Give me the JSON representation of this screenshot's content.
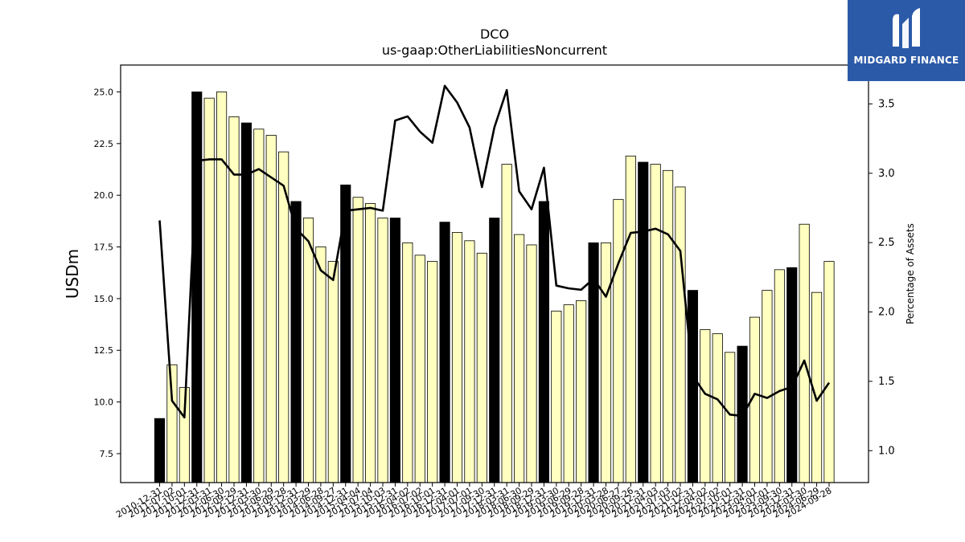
{
  "chart_data": {
    "type": "bar",
    "title": "DCO",
    "subtitle": "us-gaap:OtherLiabilitiesNoncurrent",
    "ylabel": "USDm",
    "y2label": "Percentage of Assets",
    "ylim": [
      6.1,
      26.3
    ],
    "y2lim": [
      0.77,
      3.78
    ],
    "yticks": [
      "7.5",
      "10.0",
      "12.5",
      "15.0",
      "17.5",
      "20.0",
      "22.5",
      "25.0"
    ],
    "y2ticks": [
      "1.0",
      "1.5",
      "2.0",
      "2.5",
      "3.0",
      "3.5"
    ],
    "categories": [
      "2010-12-31",
      "2011-07-02",
      "2011-10-01",
      "2011-12-31",
      "2012-03-31",
      "2012-06-30",
      "2012-09-29",
      "2012-12-31",
      "2013-03-30",
      "2013-06-29",
      "2013-09-28",
      "2013-12-31",
      "2014-03-29",
      "2014-06-28",
      "2014-09-27",
      "2014-12-31",
      "2015-04-04",
      "2015-07-04",
      "2015-10-03",
      "2015-12-31",
      "2016-04-02",
      "2016-07-02",
      "2016-10-01",
      "2016-12-31",
      "2017-04-01",
      "2017-07-01",
      "2017-09-30",
      "2017-12-31",
      "2018-03-31",
      "2018-06-30",
      "2018-09-29",
      "2018-12-31",
      "2019-03-30",
      "2019-06-29",
      "2019-09-28",
      "2019-12-31",
      "2020-03-28",
      "2020-06-27",
      "2020-09-26",
      "2020-12-31",
      "2021-04-03",
      "2021-07-03",
      "2021-10-02",
      "2021-12-31",
      "2022-04-02",
      "2022-07-02",
      "2022-10-01",
      "2022-12-31",
      "2023-04-01",
      "2023-07-01",
      "2023-09-30",
      "2023-12-31",
      "2024-03-30",
      "2024-06-29",
      "2024-09-28"
    ],
    "series": [
      {
        "type": "bar",
        "values": [
          9.2,
          11.8,
          10.7,
          25.0,
          24.7,
          25.0,
          23.8,
          23.5,
          23.2,
          22.9,
          22.1,
          19.7,
          18.9,
          17.5,
          16.8,
          20.5,
          19.9,
          19.6,
          18.9,
          18.9,
          17.7,
          17.1,
          16.8,
          18.7,
          18.2,
          17.8,
          17.2,
          18.9,
          21.5,
          18.1,
          17.6,
          19.7,
          14.4,
          14.7,
          14.9,
          17.7,
          17.7,
          19.8,
          21.9,
          21.6,
          21.5,
          21.2,
          20.4,
          15.4,
          13.5,
          13.3,
          12.4,
          12.7,
          14.1,
          15.4,
          16.4,
          16.5,
          18.6,
          15.3,
          16.8
        ],
        "highlight": [
          true,
          false,
          false,
          true,
          false,
          false,
          false,
          true,
          false,
          false,
          false,
          true,
          false,
          false,
          false,
          true,
          false,
          false,
          false,
          true,
          false,
          false,
          false,
          true,
          false,
          false,
          false,
          true,
          false,
          false,
          false,
          true,
          false,
          false,
          false,
          true,
          false,
          false,
          false,
          true,
          false,
          false,
          false,
          true,
          false,
          false,
          false,
          true,
          false,
          false,
          false,
          true,
          false,
          false,
          false
        ],
        "color_highlight": "#000000",
        "color_normal": "#ffffc0"
      },
      {
        "type": "line",
        "axis": "right",
        "values": [
          2.66,
          1.36,
          1.24,
          3.09,
          3.1,
          3.1,
          2.99,
          2.99,
          3.03,
          2.97,
          2.91,
          2.6,
          2.51,
          2.3,
          2.23,
          2.73,
          2.74,
          2.75,
          2.73,
          3.38,
          3.41,
          3.3,
          3.22,
          3.63,
          3.51,
          3.33,
          2.9,
          3.33,
          3.6,
          2.87,
          2.74,
          3.04,
          2.19,
          2.17,
          2.16,
          2.24,
          2.11,
          2.35,
          2.57,
          2.58,
          2.6,
          2.56,
          2.44,
          1.54,
          1.41,
          1.37,
          1.26,
          1.25,
          1.41,
          1.38,
          1.43,
          1.46,
          1.65,
          1.36,
          1.49
        ],
        "color": "#000000"
      }
    ],
    "grid": false
  },
  "logo": {
    "text": "MIDGARD FINANCE",
    "background": "#2b5aa8"
  }
}
